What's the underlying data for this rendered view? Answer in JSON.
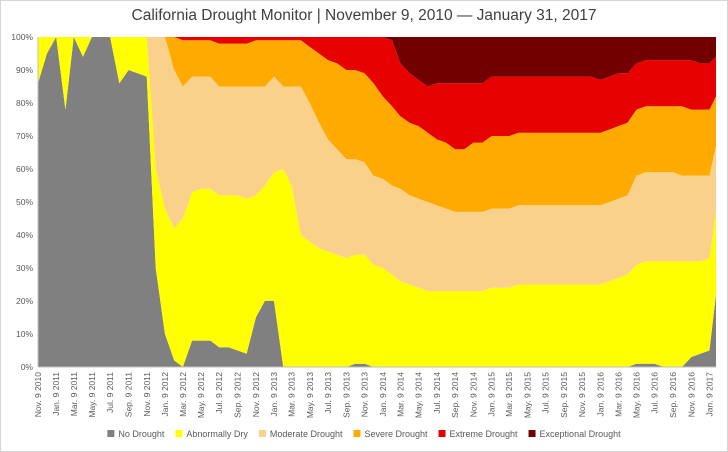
{
  "chart_data": {
    "type": "area",
    "stacked": true,
    "title": "California Drought Monitor | November 9, 2010 — January 31, 2017",
    "xlabel": "",
    "ylabel": "",
    "ylim": [
      0,
      100
    ],
    "y_ticks": [
      "0%",
      "10%",
      "20%",
      "30%",
      "40%",
      "50%",
      "60%",
      "70%",
      "80%",
      "90%",
      "100%"
    ],
    "x_tick_labels": [
      "Nov. 9 2010",
      "Jan. 9 2011",
      "Mar. 9 2011",
      "May. 9 2011",
      "Jul. 9 2011",
      "Sep. 9 2011",
      "Nov. 9 2011",
      "Jan. 9 2012",
      "Mar. 9 2012",
      "May. 9 2012",
      "Jul. 9 2012",
      "Sep. 9 2012",
      "Nov. 9 2012",
      "Jan. 9 2013",
      "Mar. 9 2013",
      "May. 9 2013",
      "Jul. 9 2013",
      "Sep. 9 2013",
      "Nov. 9 2013",
      "Jan. 9 2014",
      "Mar. 9 2014",
      "May. 9 2014",
      "Jul. 9 2014",
      "Sep. 9 2014",
      "Nov. 9 2014",
      "Jan. 9 2015",
      "Mar. 9 2015",
      "May. 9 2015",
      "Jul. 9 2015",
      "Sep. 9 2015",
      "Nov. 9 2015",
      "Jan. 9 2016",
      "Mar. 9 2016",
      "May. 9 2016",
      "Jul. 9 2016",
      "Sep. 9 2016",
      "Nov. 9 2016",
      "Jan. 9 2017"
    ],
    "legend_position": "bottom",
    "grid": false,
    "x": [
      "2010-11-09",
      "2010-12-09",
      "2011-01-09",
      "2011-02-09",
      "2011-03-09",
      "2011-04-09",
      "2011-05-09",
      "2011-06-09",
      "2011-07-09",
      "2011-08-09",
      "2011-09-09",
      "2011-10-09",
      "2011-11-09",
      "2011-12-09",
      "2012-01-09",
      "2012-02-09",
      "2012-03-09",
      "2012-04-09",
      "2012-05-09",
      "2012-06-09",
      "2012-07-09",
      "2012-08-09",
      "2012-09-09",
      "2012-10-09",
      "2012-11-09",
      "2012-12-09",
      "2013-01-09",
      "2013-02-09",
      "2013-03-09",
      "2013-04-09",
      "2013-05-09",
      "2013-06-09",
      "2013-07-09",
      "2013-08-09",
      "2013-09-09",
      "2013-10-09",
      "2013-11-09",
      "2013-12-09",
      "2014-01-09",
      "2014-02-09",
      "2014-03-09",
      "2014-04-09",
      "2014-05-09",
      "2014-06-09",
      "2014-07-09",
      "2014-08-09",
      "2014-09-09",
      "2014-10-09",
      "2014-11-09",
      "2014-12-09",
      "2015-01-09",
      "2015-02-09",
      "2015-03-09",
      "2015-04-09",
      "2015-05-09",
      "2015-06-09",
      "2015-07-09",
      "2015-08-09",
      "2015-09-09",
      "2015-10-09",
      "2015-11-09",
      "2015-12-09",
      "2016-01-09",
      "2016-02-09",
      "2016-03-09",
      "2016-04-09",
      "2016-05-09",
      "2016-06-09",
      "2016-07-09",
      "2016-08-09",
      "2016-09-09",
      "2016-10-09",
      "2016-11-09",
      "2016-12-09",
      "2017-01-09",
      "2017-01-31"
    ],
    "series": [
      {
        "name": "No Drought",
        "color": "#808080",
        "values": [
          86,
          95,
          100,
          78,
          100,
          94,
          100,
          100,
          100,
          86,
          90,
          89,
          88,
          30,
          10,
          2,
          0,
          8,
          8,
          8,
          6,
          6,
          5,
          4,
          15,
          20,
          20,
          0,
          0,
          0,
          0,
          0,
          0,
          0,
          0,
          1,
          1,
          0,
          0,
          0,
          0,
          0,
          0,
          0,
          0,
          0,
          0,
          0,
          0,
          0,
          0,
          0,
          0,
          0,
          0,
          0,
          0,
          0,
          0,
          0,
          0,
          0,
          0,
          0,
          0,
          0,
          1,
          1,
          1,
          0,
          0,
          0,
          3,
          4,
          5,
          22
        ]
      },
      {
        "name": "Abnormally Dry",
        "color": "#ffff00",
        "values": [
          14,
          5,
          0,
          22,
          0,
          6,
          0,
          0,
          0,
          14,
          10,
          11,
          12,
          30,
          38,
          40,
          45,
          45,
          46,
          46,
          46,
          46,
          47,
          47,
          37,
          35,
          39,
          60,
          55,
          40,
          38,
          36,
          35,
          34,
          33,
          33,
          33,
          31,
          30,
          28,
          26,
          25,
          24,
          23,
          23,
          23,
          23,
          23,
          23,
          23,
          24,
          24,
          24,
          25,
          25,
          25,
          25,
          25,
          25,
          25,
          25,
          25,
          25,
          26,
          27,
          28,
          30,
          31,
          31,
          32,
          32,
          32,
          29,
          28,
          28,
          25
        ]
      },
      {
        "name": "Moderate Drought",
        "color": "#fad18a",
        "values": [
          0,
          0,
          0,
          0,
          0,
          0,
          0,
          0,
          0,
          0,
          0,
          0,
          0,
          40,
          52,
          48,
          40,
          35,
          34,
          34,
          33,
          33,
          33,
          34,
          33,
          30,
          29,
          25,
          30,
          45,
          42,
          38,
          34,
          32,
          30,
          29,
          28,
          27,
          27,
          27,
          28,
          27,
          27,
          27,
          26,
          25,
          24,
          24,
          24,
          24,
          24,
          24,
          24,
          24,
          24,
          24,
          24,
          24,
          24,
          24,
          24,
          24,
          24,
          24,
          24,
          24,
          27,
          27,
          27,
          27,
          27,
          26,
          26,
          26,
          25,
          20
        ]
      },
      {
        "name": "Severe Drought",
        "color": "#ffaa00",
        "values": [
          0,
          0,
          0,
          0,
          0,
          0,
          0,
          0,
          0,
          0,
          0,
          0,
          0,
          0,
          0,
          10,
          14,
          11,
          11,
          11,
          13,
          13,
          13,
          13,
          14,
          14,
          11,
          14,
          14,
          14,
          17,
          21,
          24,
          26,
          27,
          27,
          27,
          28,
          25,
          24,
          22,
          22,
          22,
          21,
          20,
          20,
          19,
          19,
          21,
          21,
          22,
          22,
          22,
          22,
          22,
          22,
          22,
          22,
          22,
          22,
          22,
          22,
          22,
          22,
          22,
          22,
          20,
          20,
          20,
          20,
          20,
          21,
          20,
          20,
          20,
          15
        ]
      },
      {
        "name": "Extreme Drought",
        "color": "#e60000",
        "values": [
          0,
          0,
          0,
          0,
          0,
          0,
          0,
          0,
          0,
          0,
          0,
          0,
          0,
          0,
          0,
          0,
          1,
          1,
          1,
          1,
          2,
          2,
          2,
          2,
          1,
          1,
          1,
          1,
          1,
          1,
          3,
          5,
          7,
          8,
          10,
          10,
          11,
          14,
          18,
          20,
          16,
          15,
          14,
          14,
          17,
          18,
          20,
          20,
          18,
          18,
          18,
          18,
          18,
          17,
          17,
          17,
          17,
          17,
          17,
          17,
          17,
          17,
          16,
          16,
          16,
          15,
          14,
          14,
          14,
          14,
          14,
          14,
          15,
          14,
          14,
          12
        ]
      },
      {
        "name": "Exceptional Drought",
        "color": "#730000",
        "values": [
          0,
          0,
          0,
          0,
          0,
          0,
          0,
          0,
          0,
          0,
          0,
          0,
          0,
          0,
          0,
          0,
          0,
          0,
          0,
          0,
          0,
          0,
          0,
          0,
          0,
          0,
          0,
          0,
          0,
          0,
          0,
          0,
          0,
          0,
          0,
          0,
          0,
          0,
          0,
          1,
          8,
          11,
          13,
          15,
          14,
          14,
          14,
          14,
          14,
          14,
          12,
          12,
          12,
          12,
          12,
          12,
          12,
          12,
          12,
          12,
          12,
          12,
          13,
          12,
          11,
          11,
          8,
          7,
          7,
          7,
          7,
          7,
          7,
          8,
          8,
          6
        ]
      }
    ]
  }
}
